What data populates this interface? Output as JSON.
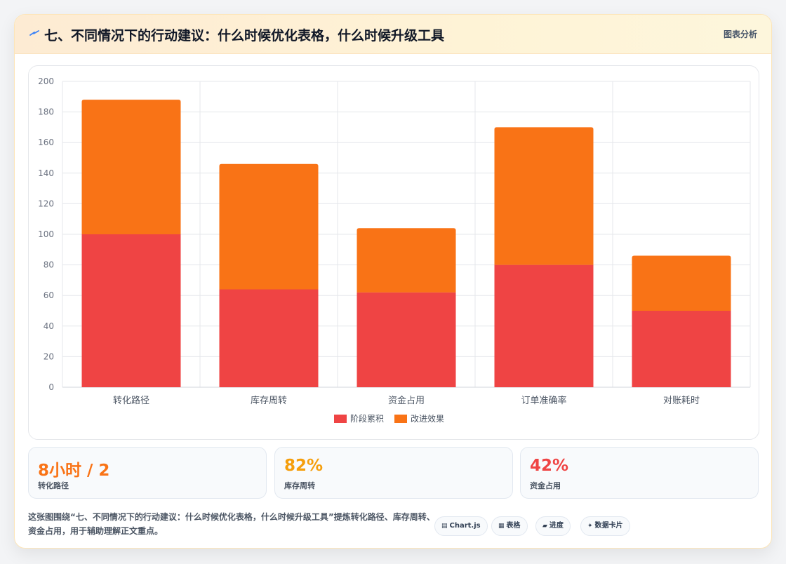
{
  "header": {
    "title": "七、不同情况下的行动建议：什么时候优化表格，什么时候升级工具",
    "tag": "图表分析",
    "icon": "lightning-icon"
  },
  "colors": {
    "series_stage": "#ef4444",
    "series_improve": "#f97316",
    "accent_orange": "#f97316",
    "accent_amber": "#f59e0b",
    "accent_red": "#ef4444"
  },
  "chart_data": {
    "type": "bar",
    "stacked": true,
    "categories": [
      "转化路径",
      "库存周转",
      "资金占用",
      "订单准确率",
      "对账耗时"
    ],
    "series": [
      {
        "name": "阶段累积",
        "values": [
          100,
          64,
          62,
          80,
          50
        ],
        "color": "#ef4444"
      },
      {
        "name": "改进效果",
        "values": [
          88,
          82,
          42,
          90,
          36
        ],
        "color": "#f97316"
      }
    ],
    "ylim": [
      0,
      200
    ],
    "yticks": [
      0,
      20,
      40,
      60,
      80,
      100,
      120,
      140,
      160,
      180,
      200
    ],
    "grid": true,
    "legend": "bottom",
    "title": "",
    "xlabel": "",
    "ylabel": ""
  },
  "stats": [
    {
      "value": "8小时 / 2",
      "label": "转化路径",
      "color": "#f97316"
    },
    {
      "value": "82%",
      "label": "库存周转",
      "color": "#f59e0b"
    },
    {
      "value": "42%",
      "label": "资金占用",
      "color": "#ef4444"
    }
  ],
  "caption": "这张图围绕“七、不同情况下的行动建议：什么时候优化表格，什么时候升级工具”提炼转化路径、库存周转、资金占用，用于辅助理解正文重点。",
  "chips": [
    {
      "label": "Chart.js",
      "icon": "chart-icon"
    },
    {
      "label": "表格",
      "icon": "table-icon"
    },
    {
      "label": "进度",
      "icon": "progress-icon"
    },
    {
      "label": "数据卡片",
      "icon": "sparkle-icon"
    }
  ]
}
